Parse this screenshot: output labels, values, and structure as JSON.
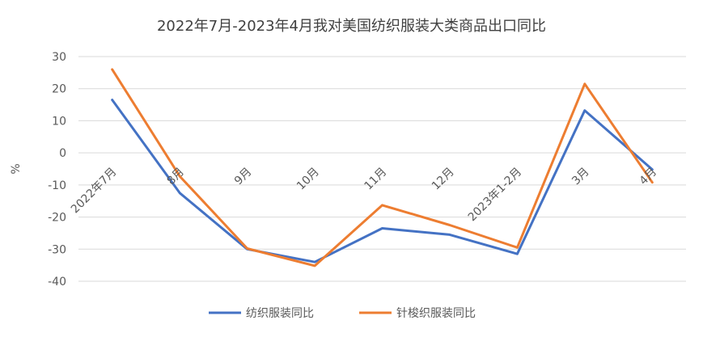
{
  "chart_data": {
    "type": "line",
    "title": "2022年7月-2023年4月我对美国纺织服装大类商品出口同比",
    "ylabel": "%",
    "xlabel": "",
    "ylim": [
      -40,
      30
    ],
    "yticks": [
      30,
      20,
      10,
      0,
      -10,
      -20,
      -30,
      -40
    ],
    "grid": true,
    "legend_position": "bottom",
    "categories": [
      "2022年7月",
      "8月",
      "9月",
      "10月",
      "11月",
      "12月",
      "2023年1-2月",
      "3月",
      "4月"
    ],
    "series": [
      {
        "name": "纺织服装同比",
        "color": "#4472C4",
        "values": [
          16.5,
          -12.5,
          -30,
          -34,
          -23.5,
          -25.5,
          -31.5,
          13.2,
          -5.2
        ]
      },
      {
        "name": "针梭织服装同比",
        "color": "#ED7D31",
        "values": [
          26,
          -7.3,
          -29.8,
          -35.2,
          -16.3,
          -22.5,
          -29.5,
          21.5,
          -9.2
        ]
      }
    ]
  }
}
